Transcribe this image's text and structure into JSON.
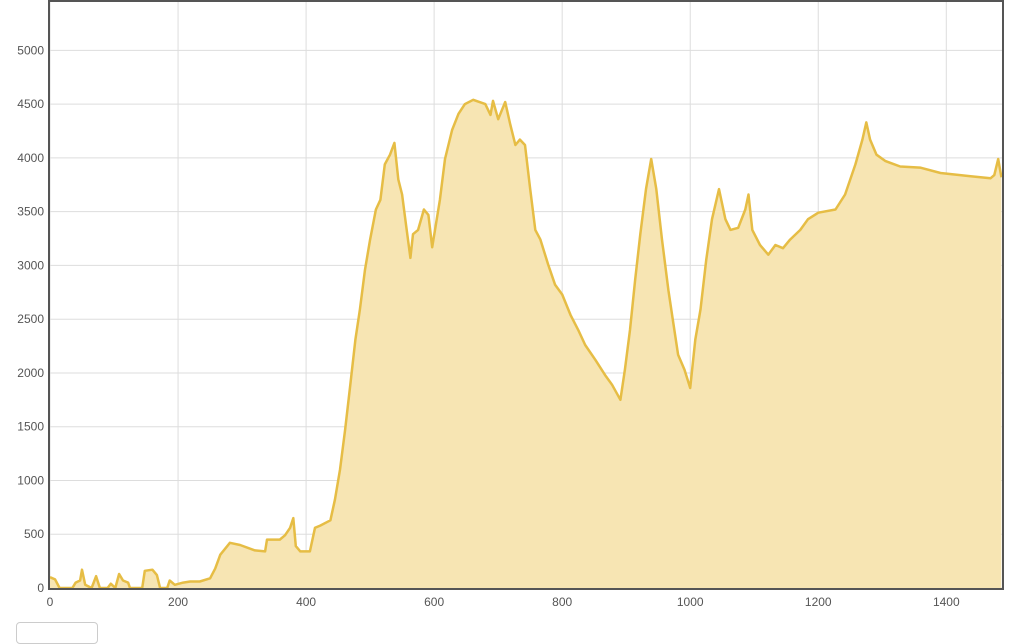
{
  "chart_data": {
    "type": "area",
    "title": "",
    "xlabel": "",
    "ylabel": "",
    "xlim": [
      0,
      1487
    ],
    "ylim": [
      0,
      5450
    ],
    "x_ticks": [
      0,
      200,
      400,
      600,
      800,
      1000,
      1200,
      1400
    ],
    "y_ticks": [
      0,
      500,
      1000,
      1500,
      2000,
      2500,
      3000,
      3500,
      4000,
      4500,
      5000
    ],
    "grid": true,
    "legend": "none",
    "colors": {
      "line": "#e6bd45",
      "fill": "#f7e5b3",
      "grid": "#dddddd",
      "frame": "#555555"
    },
    "series": [
      {
        "x": [
          0,
          8,
          15,
          35,
          40,
          47,
          50,
          55,
          65,
          72,
          78,
          90,
          95,
          102,
          108,
          114,
          122,
          125,
          144,
          148,
          160,
          167,
          172,
          183,
          187,
          195,
          208,
          219,
          234,
          250,
          258,
          266,
          281,
          297,
          320,
          336,
          339,
          359,
          367,
          375,
          380,
          384,
          391,
          406,
          414,
          422,
          438,
          445,
          453,
          461,
          469,
          477,
          484,
          492,
          500,
          509,
          516,
          523,
          531,
          538,
          544,
          550,
          556,
          563,
          567,
          575,
          584,
          591,
          597,
          609,
          617,
          628,
          638,
          648,
          661,
          680,
          688,
          692,
          700,
          711,
          719,
          727,
          734,
          742,
          750,
          758,
          766,
          778,
          789,
          800,
          813,
          825,
          836,
          852,
          867,
          878,
          891,
          898,
          906,
          914,
          922,
          931,
          939,
          947,
          956,
          966,
          973,
          981,
          991,
          1000,
          1008,
          1016,
          1025,
          1034,
          1045,
          1055,
          1063,
          1075,
          1086,
          1091,
          1097,
          1109,
          1122,
          1133,
          1145,
          1156,
          1172,
          1184,
          1200,
          1227,
          1242,
          1258,
          1269,
          1275,
          1281,
          1291,
          1305,
          1328,
          1359,
          1391,
          1438,
          1469,
          1475,
          1481,
          1486
        ],
        "y": [
          100,
          80,
          0,
          0,
          50,
          70,
          170,
          30,
          0,
          110,
          0,
          0,
          40,
          0,
          130,
          70,
          50,
          0,
          0,
          160,
          170,
          120,
          0,
          0,
          70,
          30,
          50,
          60,
          60,
          90,
          180,
          310,
          420,
          400,
          350,
          340,
          450,
          450,
          490,
          560,
          650,
          390,
          340,
          340,
          560,
          580,
          630,
          820,
          1100,
          1470,
          1890,
          2310,
          2590,
          2960,
          3240,
          3520,
          3610,
          3940,
          4030,
          4140,
          3800,
          3660,
          3380,
          3070,
          3290,
          3330,
          3520,
          3470,
          3170,
          3610,
          3990,
          4260,
          4410,
          4500,
          4540,
          4500,
          4400,
          4530,
          4360,
          4520,
          4310,
          4120,
          4170,
          4120,
          3710,
          3330,
          3240,
          3010,
          2820,
          2730,
          2540,
          2400,
          2260,
          2120,
          1980,
          1890,
          1750,
          2030,
          2400,
          2870,
          3290,
          3710,
          3990,
          3710,
          3240,
          2770,
          2490,
          2170,
          2030,
          1860,
          2310,
          2590,
          3050,
          3430,
          3710,
          3430,
          3330,
          3350,
          3520,
          3660,
          3330,
          3190,
          3100,
          3190,
          3160,
          3240,
          3330,
          3430,
          3490,
          3520,
          3660,
          3940,
          4170,
          4330,
          4170,
          4030,
          3970,
          3920,
          3910,
          3860,
          3830,
          3810,
          3840,
          3990,
          3820
        ]
      }
    ]
  }
}
